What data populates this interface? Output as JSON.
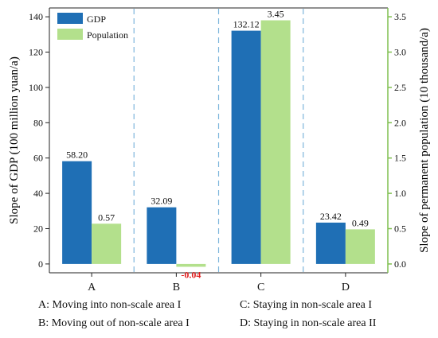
{
  "chart_data": {
    "type": "bar",
    "categories": [
      "A",
      "B",
      "C",
      "D"
    ],
    "series": [
      {
        "name": "GDP",
        "axis": "left",
        "color": "#1f6fb5",
        "values": [
          58.2,
          32.09,
          132.12,
          23.42
        ]
      },
      {
        "name": "Population",
        "axis": "right",
        "color": "#b3e08c",
        "values": [
          0.57,
          -0.04,
          3.45,
          0.49
        ]
      }
    ],
    "data_labels": {
      "GDP": [
        "58.20",
        "32.09",
        "132.12",
        "23.42"
      ],
      "Population": [
        "0.57",
        "-0.04",
        "3.45",
        "0.49"
      ]
    },
    "negative_label_color": "#e02020",
    "ylabel_left": "Slope of GDP (100 million yuan/a)",
    "ylabel_right": "Slope of permanent population (10 thousand/a)",
    "ylim_left": [
      -5,
      145
    ],
    "ylim_right": [
      -0.125,
      3.625
    ],
    "yticks_left": [
      0,
      20,
      40,
      60,
      80,
      100,
      120,
      140
    ],
    "yticks_right": [
      "0.0",
      "0.5",
      "1.0",
      "1.5",
      "2.0",
      "2.5",
      "3.0",
      "3.5"
    ],
    "right_axis_color": "#7fbf4f",
    "separator_color": "#7db5dc",
    "legend_position": "top-left",
    "grid": false
  },
  "notes": {
    "a": "A: Moving into non-scale area I",
    "b": "B: Moving out of non-scale area I",
    "c": "C: Staying in non-scale area I",
    "d": "D: Staying in non-scale area II"
  }
}
